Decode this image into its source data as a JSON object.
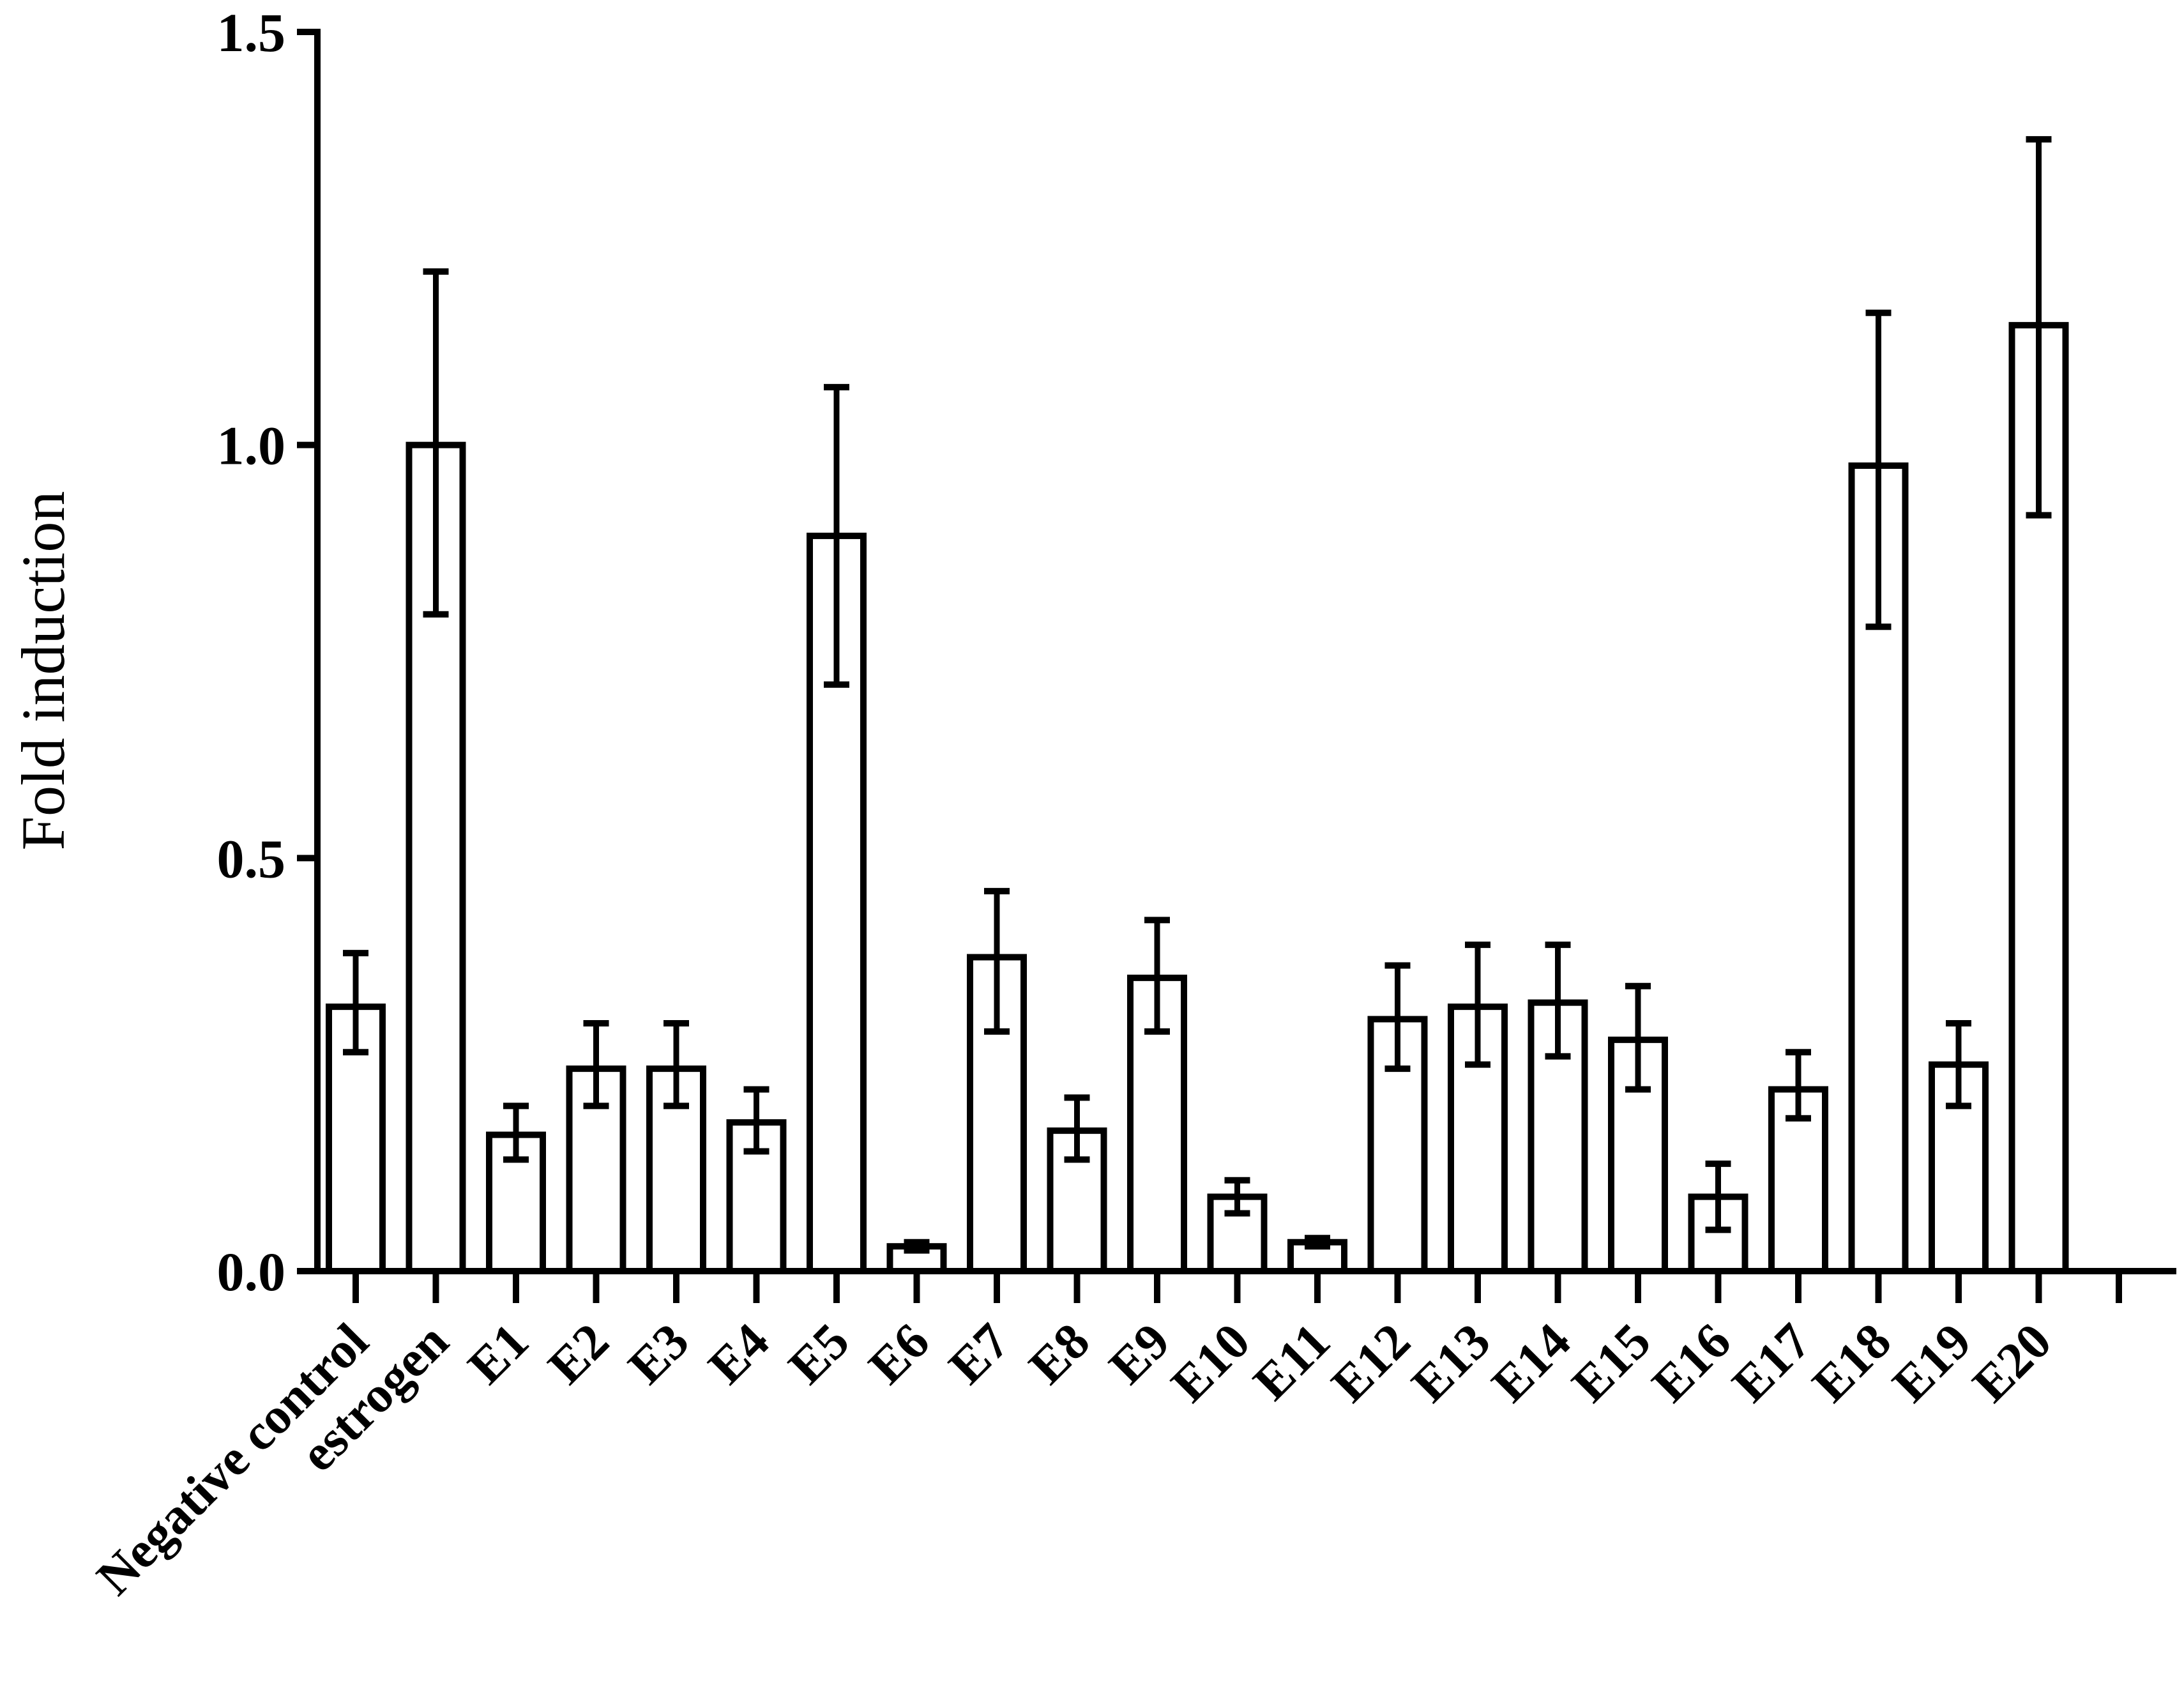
{
  "chart_data": {
    "type": "bar",
    "title": "",
    "xlabel": "",
    "ylabel": "Fold induction",
    "ylim": [
      0,
      1.5
    ],
    "yticks": [
      "0.0",
      "0.5",
      "1.0",
      "1.5"
    ],
    "grid": false,
    "legend": "none",
    "colors": {
      "bar_fill": "#ffffff",
      "bar_stroke": "#000000",
      "axis": "#000000"
    },
    "categories": [
      "Negative control",
      "estrogen",
      "E1",
      "E2",
      "E3",
      "E4",
      "E5",
      "E6",
      "E7",
      "E8",
      "E9",
      "E10",
      "E11",
      "E12",
      "E13",
      "E14",
      "E15",
      "E16",
      "E17",
      "E18",
      "E19",
      "E20"
    ],
    "values": [
      0.32,
      1.0,
      0.165,
      0.245,
      0.245,
      0.18,
      0.89,
      0.03,
      0.38,
      0.17,
      0.355,
      0.09,
      0.035,
      0.305,
      0.32,
      0.325,
      0.28,
      0.09,
      0.22,
      0.975,
      0.25,
      1.145
    ],
    "error_low": [
      0.265,
      0.795,
      0.135,
      0.2,
      0.2,
      0.145,
      0.71,
      0.025,
      0.29,
      0.135,
      0.29,
      0.07,
      0.03,
      0.245,
      0.25,
      0.26,
      0.22,
      0.05,
      0.185,
      0.78,
      0.2,
      0.915
    ],
    "error_high": [
      0.385,
      1.21,
      0.2,
      0.3,
      0.3,
      0.22,
      1.07,
      0.035,
      0.46,
      0.21,
      0.425,
      0.11,
      0.04,
      0.37,
      0.395,
      0.395,
      0.345,
      0.13,
      0.265,
      1.16,
      0.3,
      1.37
    ]
  }
}
